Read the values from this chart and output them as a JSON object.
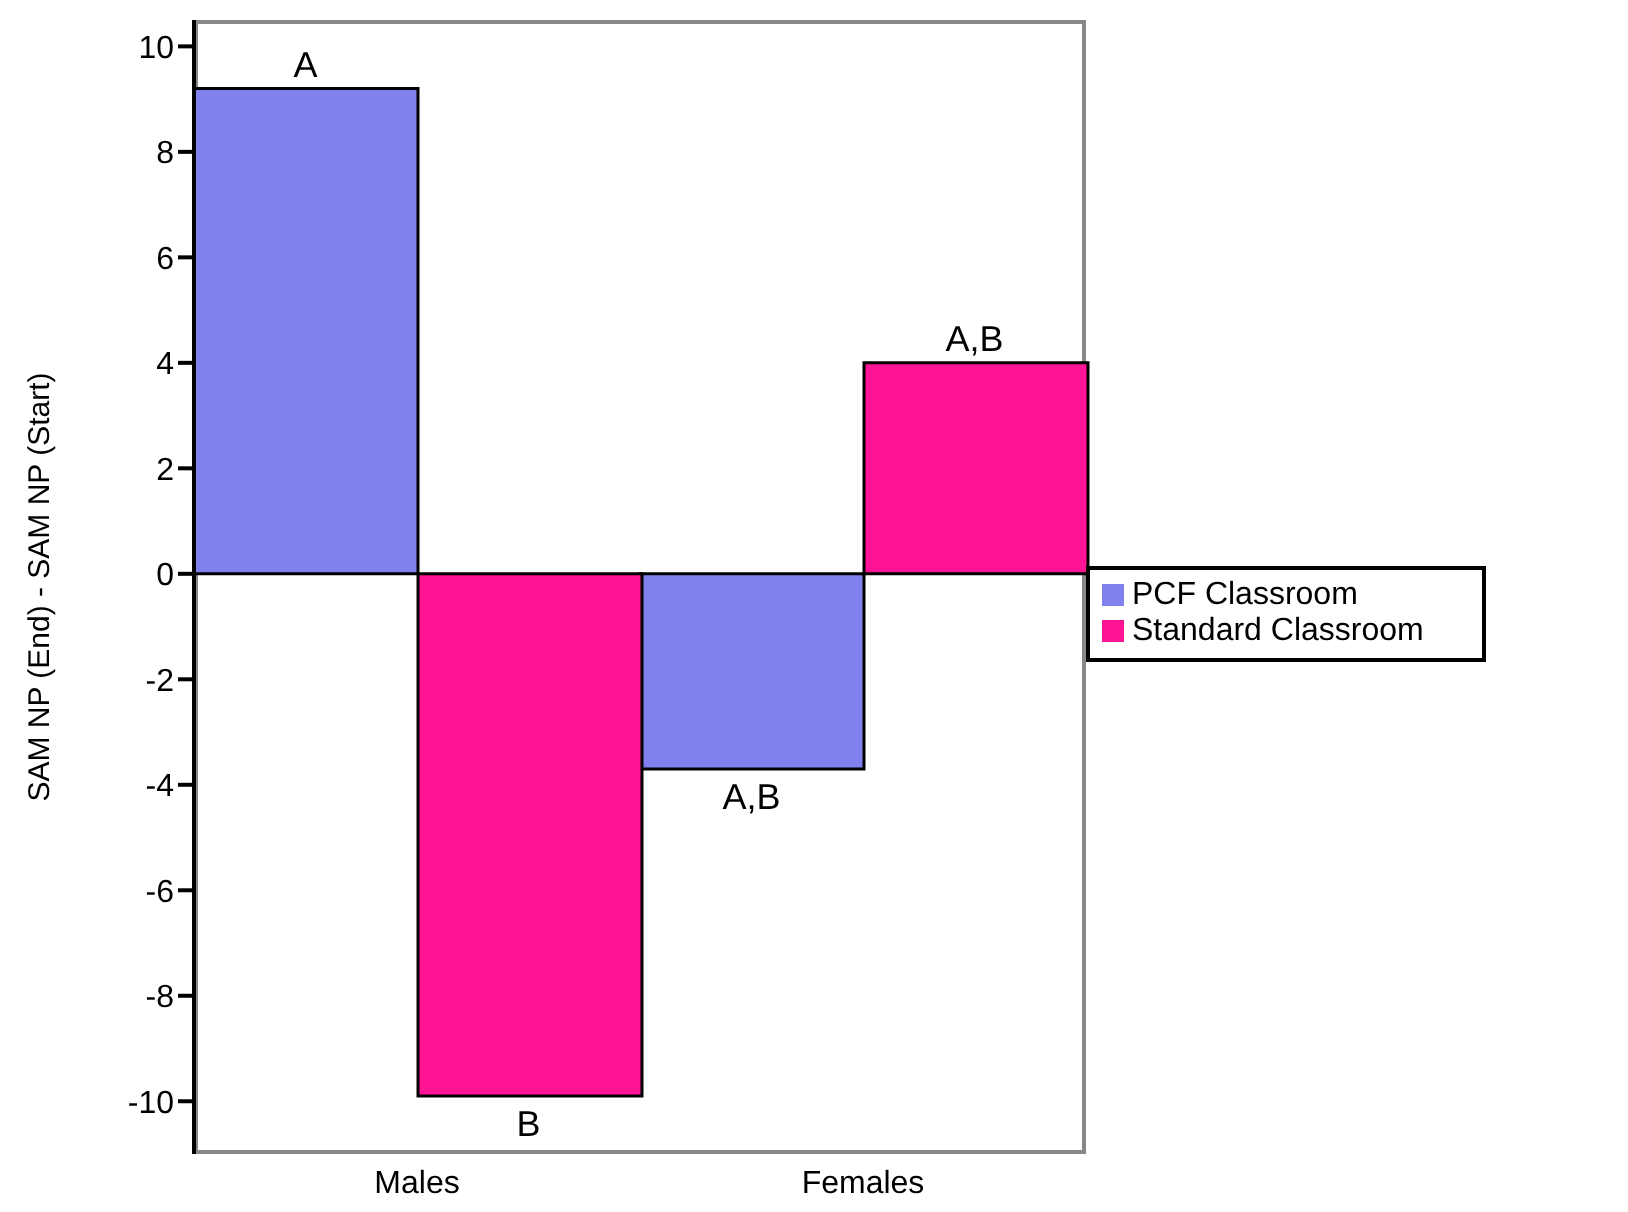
{
  "chart_data": {
    "type": "bar",
    "ylabel": "SAM NP (End) - SAM NP (Start)",
    "categories": [
      "Males",
      "Females"
    ],
    "series": [
      {
        "name": "PCF Classroom",
        "color": "#8080ee",
        "values": [
          9.2,
          -3.7
        ]
      },
      {
        "name": "Standard Classroom",
        "color": "#ff1493",
        "values": [
          -9.9,
          4.0
        ]
      }
    ],
    "ylim": [
      -11,
      10.5
    ],
    "yticks": [
      -10,
      -8,
      -6,
      -4,
      -2,
      0,
      2,
      4,
      6,
      8,
      10
    ],
    "grid": false,
    "legend": "right",
    "annotations": [
      {
        "text": "A",
        "x": "Males",
        "y": 9.2
      },
      {
        "text": "B",
        "x": "Males",
        "y": -9.9
      },
      {
        "text": "A,B",
        "x": "Females",
        "y": -3.7
      },
      {
        "text": "A,B",
        "x": "Females",
        "y": 4.0
      }
    ]
  }
}
